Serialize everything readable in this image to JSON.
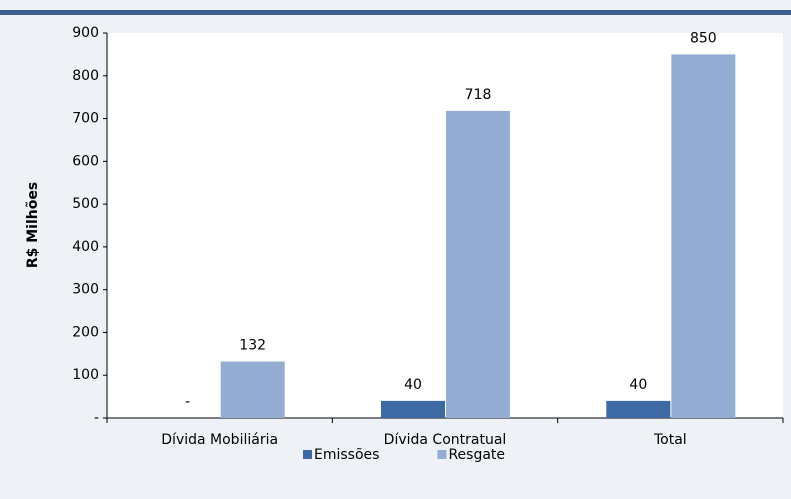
{
  "chart_data": {
    "type": "bar",
    "y_label": "R$ Milhões",
    "categories": [
      "Dívida Mobiliária",
      "Dívida Contratual",
      "Total"
    ],
    "series": [
      {
        "name": "Emissões",
        "color": "#3d6aa5",
        "values": [
          0,
          40,
          40
        ],
        "value_labels": [
          "-",
          "40",
          "40"
        ]
      },
      {
        "name": "Resgate",
        "color": "#94aed3",
        "values": [
          132,
          718,
          850
        ]
      }
    ],
    "ylim": [
      0,
      900
    ],
    "yticks": [
      {
        "value": 0,
        "label": "-"
      },
      100,
      200,
      300,
      400,
      500,
      600,
      700,
      800,
      900
    ],
    "legend": "bottom"
  }
}
